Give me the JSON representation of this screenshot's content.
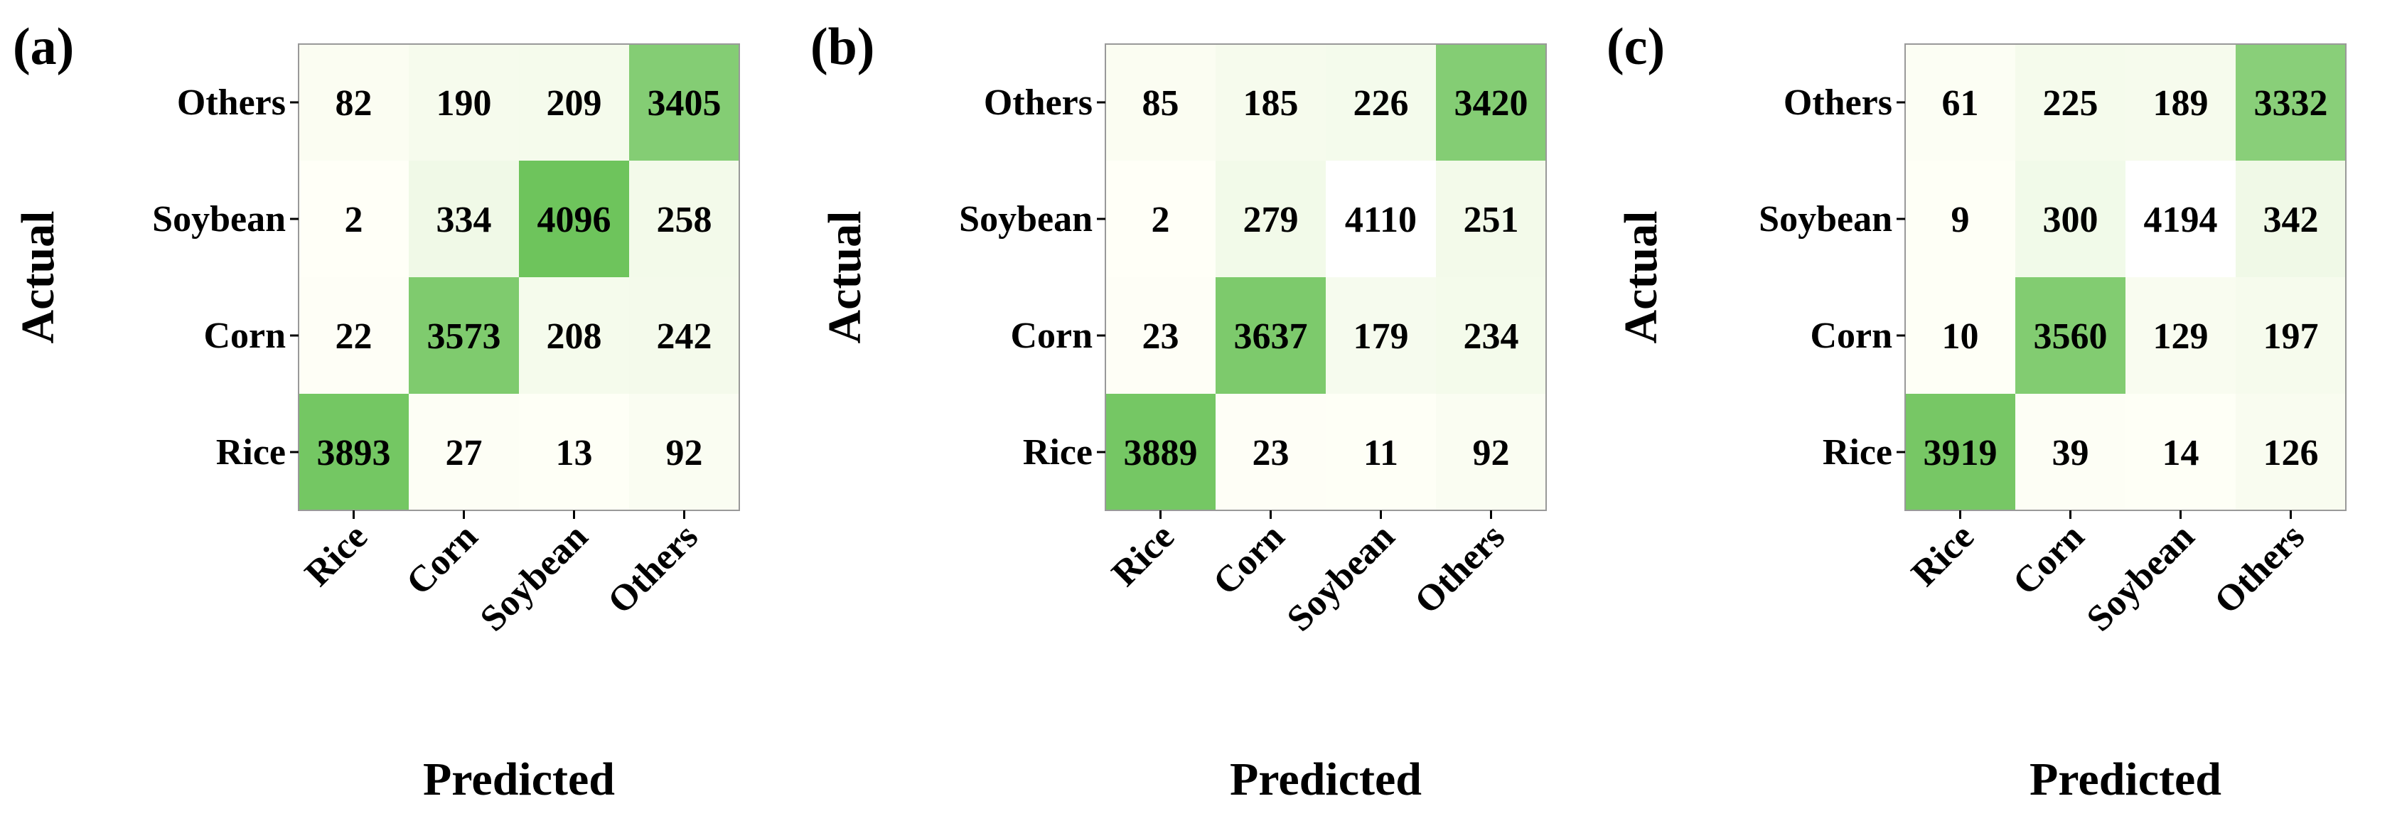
{
  "chart_data": [
    {
      "type": "heatmap",
      "panel_label": "(a)",
      "xlabel": "Predicted",
      "ylabel": "Actual",
      "columns": [
        "Rice",
        "Corn",
        "Soybean",
        "Others"
      ],
      "rows": [
        "Others",
        "Soybean",
        "Corn",
        "Rice"
      ],
      "values": [
        [
          82,
          190,
          209,
          3405
        ],
        [
          2,
          334,
          4096,
          258
        ],
        [
          22,
          3573,
          208,
          242
        ],
        [
          3893,
          27,
          13,
          92
        ]
      ],
      "color_min": "#fffff7",
      "color_max": "#6ec45c"
    },
    {
      "type": "heatmap",
      "panel_label": "(b)",
      "xlabel": "Predicted",
      "ylabel": "Actual",
      "columns": [
        "Rice",
        "Corn",
        "Soybean",
        "Others"
      ],
      "rows": [
        "Others",
        "Soybean",
        "Corn",
        "Rice"
      ],
      "values": [
        [
          85,
          185,
          226,
          3420
        ],
        [
          2,
          279,
          4110,
          251
        ],
        [
          23,
          3637,
          179,
          234
        ],
        [
          3889,
          23,
          11,
          92
        ]
      ],
      "color_min": "#fffff7",
      "color_max": "#6ec45c",
      "blank_cells": [
        [
          1,
          2
        ]
      ]
    },
    {
      "type": "heatmap",
      "panel_label": "(c)",
      "xlabel": "Predicted",
      "ylabel": "Actual",
      "columns": [
        "Rice",
        "Corn",
        "Soybean",
        "Others"
      ],
      "rows": [
        "Others",
        "Soybean",
        "Corn",
        "Rice"
      ],
      "values": [
        [
          61,
          225,
          189,
          3332
        ],
        [
          9,
          300,
          4194,
          342
        ],
        [
          10,
          3560,
          129,
          197
        ],
        [
          3919,
          39,
          14,
          126
        ]
      ],
      "color_min": "#fffff7",
      "color_max": "#6ec45c",
      "blank_cells": [
        [
          1,
          2
        ]
      ]
    }
  ]
}
